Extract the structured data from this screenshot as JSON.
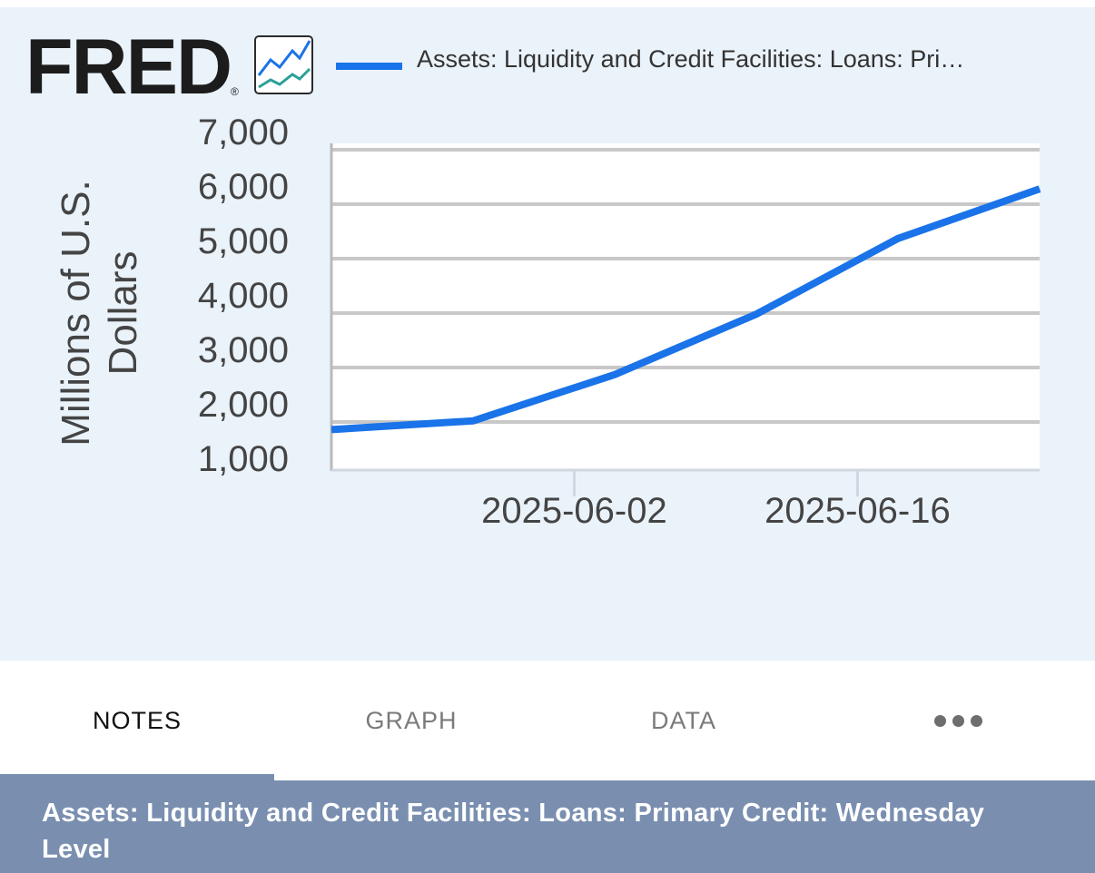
{
  "brand": {
    "logo_text": "FRED",
    "registered_mark": "®",
    "logo_icon": "trend-lines-icon"
  },
  "colors": {
    "panel_bg": "#eaf2fa",
    "series_line": "#1a73e8",
    "footer_bg": "#7a8fb0",
    "grid": "#c8c8c8"
  },
  "chart_data": {
    "type": "line",
    "legend": {
      "placement": "top",
      "label": "Assets: Liquidity and Credit Facilities: Loans: Pri…"
    },
    "ylabel": "Millions of U.S. Dollars",
    "ylim": [
      1000,
      7000
    ],
    "yticks": [
      1000,
      2000,
      3000,
      4000,
      5000,
      6000,
      7000
    ],
    "ytick_labels": [
      "1,000",
      "2,000",
      "3,000",
      "4,000",
      "5,000",
      "6,000",
      "7,000"
    ],
    "xlim": [
      "2025-05-21",
      "2025-06-25"
    ],
    "xticks": [
      "2025-06-02",
      "2025-06-16"
    ],
    "grid": true,
    "series": [
      {
        "name": "Assets: Liquidity and Credit Facilities: Loans: Pri…",
        "x": [
          "2025-05-21",
          "2025-05-28",
          "2025-06-04",
          "2025-06-11",
          "2025-06-18",
          "2025-06-25"
        ],
        "y": [
          1860,
          2020,
          2870,
          3980,
          5370,
          6280
        ]
      }
    ]
  },
  "tabs": [
    {
      "label": "NOTES",
      "active": true
    },
    {
      "label": "GRAPH",
      "active": false
    },
    {
      "label": "DATA",
      "active": false
    },
    {
      "label": "",
      "icon": "more-dots-icon",
      "active": false
    }
  ],
  "footer": {
    "series_title": "Assets: Liquidity and Credit Facilities: Loans: Primary Credit: Wednesday Level"
  }
}
